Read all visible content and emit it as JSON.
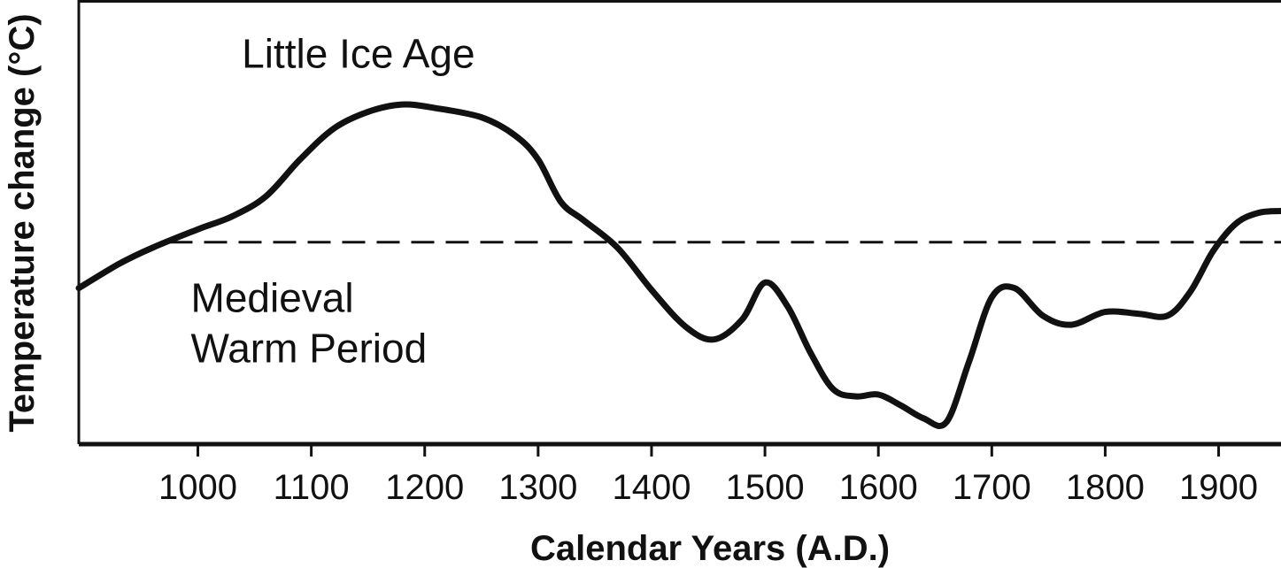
{
  "chart_data": {
    "type": "line",
    "title": "",
    "xlabel": "Calendar Years (A.D.)",
    "ylabel": "Temperature change (°C)",
    "xlim": [
      895,
      1955
    ],
    "ylim": [
      -1.1,
      1.3
    ],
    "grid": false,
    "baseline": {
      "y": 0,
      "style": "dashed"
    },
    "x_ticks": [
      1000,
      1100,
      1200,
      1300,
      1400,
      1500,
      1600,
      1700,
      1800,
      1900
    ],
    "tick_labels": [
      "1000",
      "1100",
      "1200",
      "1300",
      "1400",
      "1500",
      "1600",
      "1700",
      "1800",
      "1900"
    ],
    "annotations": [
      {
        "id": "medieval",
        "lines": [
          "Medieval",
          "Warm Period"
        ],
        "x": 1000,
        "y": -0.38
      },
      {
        "id": "little-ice-age",
        "lines": [
          "Little Ice Age"
        ],
        "x": 1045,
        "y": 0.95
      }
    ],
    "series": [
      {
        "x": [
          895,
          930,
          960,
          1000,
          1030,
          1060,
          1090,
          1120,
          1150,
          1180,
          1210,
          1250,
          1280,
          1300,
          1320,
          1340,
          1370,
          1400,
          1430,
          1455,
          1480,
          1500,
          1520,
          1540,
          1560,
          1580,
          1600,
          1620,
          1640,
          1660,
          1680,
          1700,
          1720,
          1745,
          1770,
          1800,
          1830,
          1855,
          1875,
          1895,
          1915,
          1935,
          1955
        ],
        "y": [
          -0.25,
          -0.12,
          -0.03,
          0.07,
          0.14,
          0.25,
          0.45,
          0.62,
          0.71,
          0.75,
          0.73,
          0.68,
          0.58,
          0.45,
          0.22,
          0.12,
          -0.03,
          -0.26,
          -0.46,
          -0.53,
          -0.42,
          -0.22,
          -0.35,
          -0.6,
          -0.8,
          -0.84,
          -0.83,
          -0.89,
          -0.96,
          -0.98,
          -0.65,
          -0.3,
          -0.25,
          -0.4,
          -0.45,
          -0.38,
          -0.39,
          -0.4,
          -0.27,
          -0.05,
          0.1,
          0.16,
          0.17
        ]
      }
    ]
  }
}
